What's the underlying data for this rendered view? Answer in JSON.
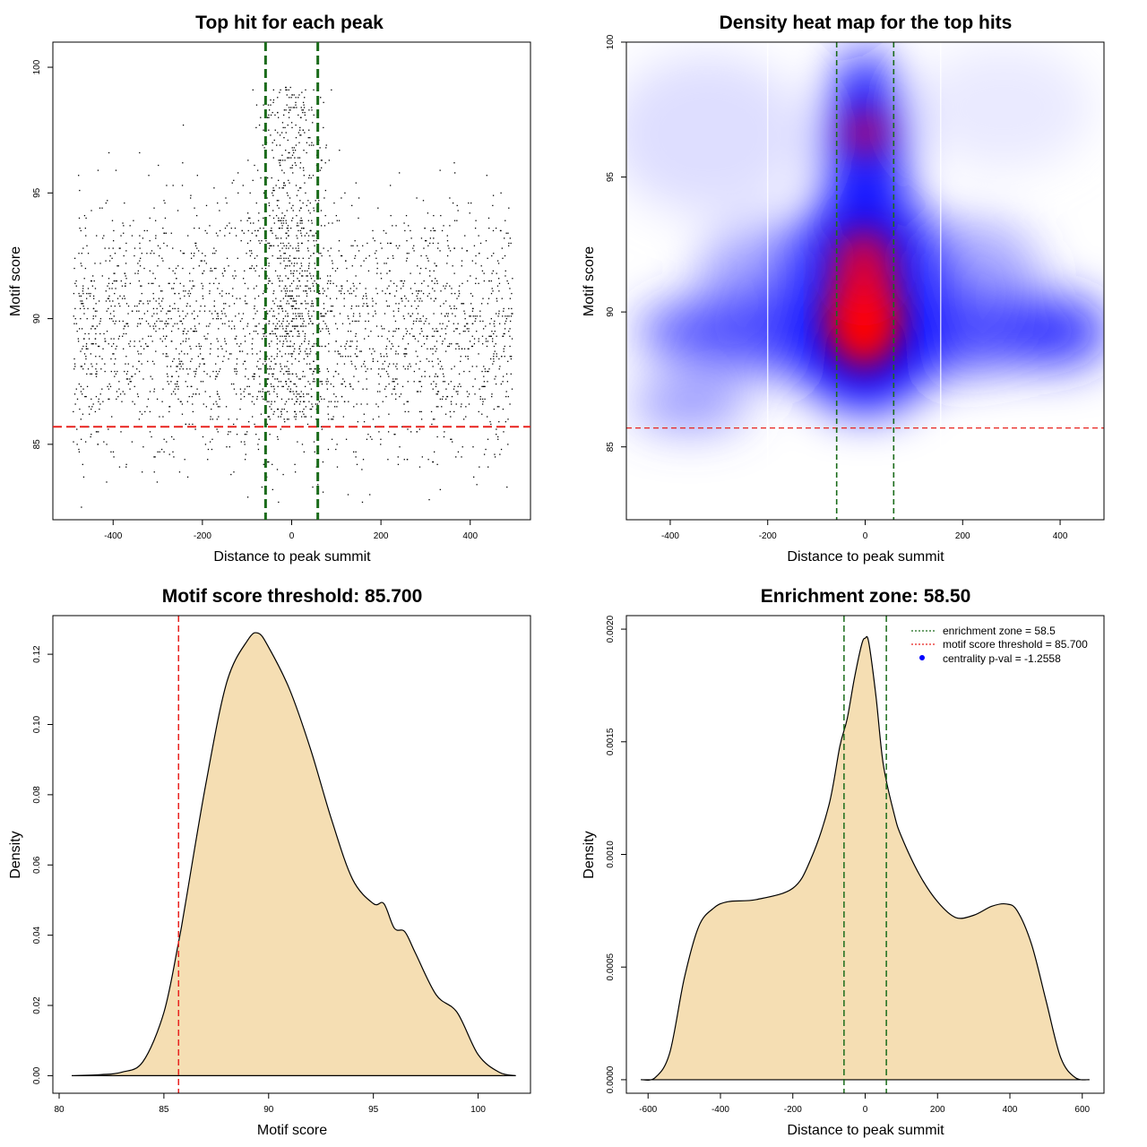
{
  "chart_data": [
    {
      "id": "scatter",
      "type": "scatter",
      "title": "Top hit for each peak",
      "xlabel": "Distance to peak summit",
      "ylabel": "Motif score",
      "xlim": [
        -535,
        535
      ],
      "ylim": [
        82,
        101
      ],
      "xticks": [
        -400,
        -200,
        0,
        200,
        400
      ],
      "yticks": [
        85,
        90,
        95,
        100
      ],
      "n_points": 3200,
      "threshold_score": 85.7,
      "enrichment_zone": [
        -58.5,
        58.5
      ],
      "line_colors": {
        "threshold": "#e8221e",
        "zone": "#1a6b1a"
      }
    },
    {
      "id": "heatmap",
      "type": "heatmap",
      "title": "Density heat map for the top hits",
      "xlabel": "Distance to peak summit",
      "ylabel": "Motif score",
      "xlim": [
        -490,
        490
      ],
      "ylim": [
        82.3,
        100
      ],
      "xticks": [
        -400,
        -200,
        0,
        200,
        400
      ],
      "yticks": [
        85,
        90,
        95,
        100
      ],
      "threshold_score": 85.7,
      "enrichment_zone": [
        -58.5,
        58.5
      ],
      "white_lines_x": [
        -200,
        155
      ],
      "hotspots": [
        {
          "x": 0,
          "y": 89.3,
          "weight": "peak"
        },
        {
          "x": 0,
          "y": 91.5,
          "weight": "high"
        },
        {
          "x": 0,
          "y": 96.7,
          "weight": "medium"
        }
      ],
      "colors": {
        "low": "#ffffff",
        "mid": "#0000ff",
        "high": "#ff0000"
      }
    },
    {
      "id": "score_density",
      "type": "area",
      "title": "Motif score threshold: 85.700",
      "xlabel": "Motif score",
      "ylabel": "Density",
      "xlim": [
        79.7,
        102.5
      ],
      "ylim": [
        -0.005,
        0.131
      ],
      "xticks": [
        80,
        85,
        90,
        95,
        100
      ],
      "yticks": [
        0.0,
        0.02,
        0.04,
        0.06,
        0.08,
        0.1,
        0.12
      ],
      "ytick_labels": [
        "0.00",
        "0.02",
        "0.04",
        "0.06",
        "0.08",
        "0.10",
        "0.12"
      ],
      "x": [
        80.6,
        82,
        83,
        84,
        85,
        85.7,
        86,
        87,
        88,
        89,
        89.5,
        90,
        91,
        92,
        93,
        94,
        95,
        95.5,
        96,
        96.5,
        97,
        98,
        99,
        100,
        101,
        101.8
      ],
      "y": [
        0,
        0.0003,
        0.001,
        0.004,
        0.018,
        0.038,
        0.048,
        0.083,
        0.112,
        0.124,
        0.126,
        0.122,
        0.11,
        0.093,
        0.073,
        0.056,
        0.049,
        0.049,
        0.042,
        0.041,
        0.035,
        0.023,
        0.018,
        0.006,
        0.001,
        0
      ],
      "threshold": 85.7,
      "fill": "#f5deb3",
      "threshold_color": "#e8221e"
    },
    {
      "id": "distance_density",
      "type": "area",
      "title": "Enrichment zone: 58.50",
      "xlabel": "Distance to peak summit",
      "ylabel": "Density",
      "xlim": [
        -660,
        660
      ],
      "ylim": [
        -6e-05,
        0.00206
      ],
      "xticks": [
        -600,
        -400,
        -200,
        0,
        200,
        400,
        600
      ],
      "yticks": [
        0,
        0.0005,
        0.001,
        0.0015,
        0.002
      ],
      "ytick_labels": [
        "0.0000",
        "0.0005",
        "0.0010",
        "0.0015",
        "0.0020"
      ],
      "x": [
        -620,
        -580,
        -540,
        -500,
        -460,
        -420,
        -380,
        -300,
        -200,
        -150,
        -100,
        -70,
        -50,
        -30,
        -10,
        0,
        10,
        30,
        50,
        80,
        100,
        150,
        200,
        250,
        300,
        350,
        390,
        420,
        460,
        500,
        540,
        580,
        620
      ],
      "y": [
        0,
        1e-05,
        0.00012,
        0.00045,
        0.00068,
        0.00076,
        0.00079,
        0.0008,
        0.00085,
        0.00098,
        0.00122,
        0.00148,
        0.0016,
        0.00178,
        0.00193,
        0.00196,
        0.00194,
        0.0017,
        0.0014,
        0.00118,
        0.00108,
        0.00091,
        0.00079,
        0.00072,
        0.00073,
        0.00077,
        0.00078,
        0.00075,
        0.0006,
        0.00035,
        0.0001,
        1e-05,
        0
      ],
      "enrichment_zone": [
        -58.5,
        58.5
      ],
      "fill": "#f5deb3",
      "zone_color": "#1a6b1a",
      "legend": [
        {
          "label": "enrichment zone = 58.5",
          "style": "dotted",
          "color": "#1a6b1a"
        },
        {
          "label": "motif score threshold = 85.700",
          "style": "dotted",
          "color": "#e8221e"
        },
        {
          "label": "centrality p-val = -1.2558",
          "style": "point",
          "color": "#0000ff"
        }
      ]
    }
  ]
}
